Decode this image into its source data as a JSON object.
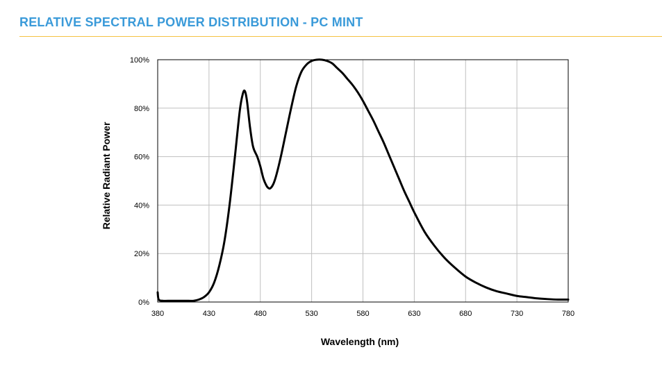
{
  "header": {
    "title": "RELATIVE SPECTRAL POWER DISTRIBUTION - PC MINT"
  },
  "colors": {
    "title": "#3a9ad9",
    "rule": "#f5c242",
    "grid": "#bfbfbf",
    "curve": "#000000",
    "text": "#000000"
  },
  "chart_data": {
    "type": "line",
    "title": "",
    "xlabel": "Wavelength (nm)",
    "ylabel": "Relative Radiant Power",
    "xlim": [
      380,
      780
    ],
    "ylim": [
      0,
      100
    ],
    "grid": true,
    "xticks": [
      380,
      430,
      480,
      530,
      580,
      630,
      680,
      730,
      780
    ],
    "xtick_labels": [
      "380",
      "430",
      "480",
      "530",
      "580",
      "630",
      "680",
      "730",
      "780"
    ],
    "yticks": [
      0,
      20,
      40,
      60,
      80,
      100
    ],
    "ytick_labels": [
      "0%",
      "20%",
      "40%",
      "60%",
      "80%",
      "100%"
    ],
    "series": [
      {
        "x": [
          380,
          381,
          385,
          390,
          400,
          410,
          415,
          420,
          425,
          430,
          435,
          440,
          445,
          450,
          455,
          460,
          463,
          465,
          467,
          470,
          473,
          477,
          480,
          483,
          486,
          488,
          490,
          493,
          496,
          500,
          505,
          510,
          515,
          520,
          525,
          530,
          535,
          540,
          545,
          550,
          555,
          560,
          565,
          570,
          575,
          580,
          585,
          590,
          595,
          600,
          605,
          610,
          615,
          620,
          625,
          630,
          640,
          650,
          660,
          670,
          680,
          690,
          700,
          710,
          720,
          730,
          740,
          750,
          760,
          770,
          780
        ],
        "y": [
          4,
          1,
          0.5,
          0.5,
          0.5,
          0.5,
          0.5,
          1,
          2,
          4,
          8,
          15,
          25,
          40,
          59,
          79,
          86,
          87,
          83,
          72,
          64,
          60,
          56,
          51,
          48,
          47,
          47,
          49,
          53,
          60,
          70,
          80,
          89,
          95,
          98,
          99.5,
          100,
          100,
          99.5,
          98.5,
          96.5,
          94.5,
          92,
          89.5,
          86.5,
          83,
          79,
          75,
          70.5,
          66,
          61,
          56,
          51,
          46,
          41.5,
          37,
          29,
          23,
          18,
          14,
          10.5,
          8,
          6,
          4.5,
          3.5,
          2.5,
          2,
          1.5,
          1.2,
          1,
          1
        ]
      }
    ]
  }
}
